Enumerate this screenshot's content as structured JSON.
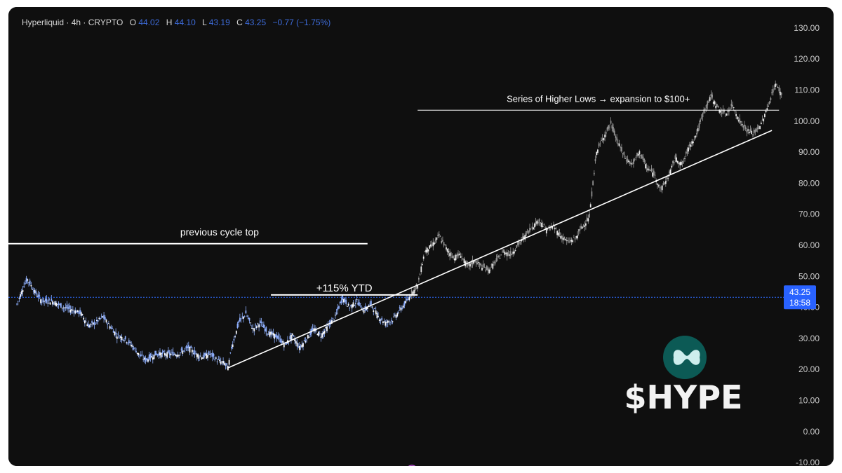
{
  "header": {
    "symbol": "Hyperliquid",
    "interval": "4h",
    "exchange": "CRYPTO",
    "open_label": "O",
    "open": "44.02",
    "high_label": "H",
    "high": "44.10",
    "low_label": "L",
    "low": "43.19",
    "close_label": "C",
    "close": "43.25",
    "change": "−0.77 (−1.75%)"
  },
  "price_tag": {
    "price": "43.25",
    "countdown": "18:58"
  },
  "logo": {
    "ticker": "$HYPE"
  },
  "colors": {
    "background": "#0f0f0f",
    "history_candles": "#8fb0ff",
    "projection_candles": "#9a9a9a",
    "annotation_lines": "#ffffff",
    "price_line": "#2f6bff",
    "price_tag": "#2962ff",
    "logo_teal": "#0c5a55",
    "change_text": "#3d6bd9"
  },
  "chart_data": {
    "type": "candlestick",
    "ylim": [
      -10,
      130
    ],
    "y_ticks": [
      "130.00",
      "120.00",
      "110.00",
      "100.00",
      "90.00",
      "80.00",
      "70.00",
      "60.00",
      "50.00",
      "40.00",
      "30.00",
      "20.00",
      "10.00",
      "0.00",
      "-10.00"
    ],
    "grid": false,
    "current_price": 43.25,
    "series": [
      {
        "role": "history",
        "path": [
          [
            0,
            41
          ],
          [
            2,
            47
          ],
          [
            3,
            49
          ],
          [
            5,
            45
          ],
          [
            7,
            42
          ],
          [
            10,
            42
          ],
          [
            13,
            40
          ],
          [
            16,
            39
          ],
          [
            18,
            38
          ],
          [
            20,
            34
          ],
          [
            22,
            35
          ],
          [
            24,
            37
          ],
          [
            26,
            34
          ],
          [
            28,
            31
          ],
          [
            30,
            30
          ],
          [
            32,
            28
          ],
          [
            34,
            25
          ],
          [
            36,
            23
          ],
          [
            39,
            25
          ],
          [
            42,
            25
          ],
          [
            45,
            25
          ],
          [
            48,
            27
          ],
          [
            50,
            25
          ],
          [
            52,
            24
          ],
          [
            54,
            25
          ],
          [
            56,
            23
          ],
          [
            58,
            22
          ],
          [
            59,
            20.5
          ],
          [
            60,
            27
          ],
          [
            62,
            35
          ],
          [
            64,
            38
          ],
          [
            66,
            33
          ],
          [
            68,
            35
          ],
          [
            70,
            32
          ],
          [
            72,
            31
          ],
          [
            74,
            29
          ],
          [
            75,
            28
          ],
          [
            77,
            31
          ],
          [
            79,
            27
          ],
          [
            81,
            30
          ],
          [
            83,
            33
          ],
          [
            85,
            31
          ],
          [
            87,
            34
          ],
          [
            89,
            37
          ],
          [
            91,
            43
          ],
          [
            93,
            40
          ],
          [
            95,
            42
          ],
          [
            97,
            39
          ],
          [
            99,
            41
          ],
          [
            101,
            37
          ],
          [
            103,
            35
          ],
          [
            105,
            36
          ],
          [
            107,
            39
          ],
          [
            109,
            42
          ],
          [
            110,
            44
          ]
        ]
      },
      {
        "role": "projection",
        "path": [
          [
            110,
            44
          ],
          [
            112,
            47
          ],
          [
            114,
            58
          ],
          [
            116,
            60
          ],
          [
            118,
            63
          ],
          [
            120,
            59
          ],
          [
            122,
            56
          ],
          [
            124,
            57
          ],
          [
            126,
            53
          ],
          [
            128,
            55
          ],
          [
            130,
            53
          ],
          [
            132,
            52
          ],
          [
            134,
            55
          ],
          [
            136,
            58
          ],
          [
            138,
            57
          ],
          [
            140,
            60
          ],
          [
            142,
            63
          ],
          [
            144,
            66
          ],
          [
            146,
            68
          ],
          [
            148,
            65
          ],
          [
            150,
            66
          ],
          [
            152,
            63
          ],
          [
            154,
            61
          ],
          [
            156,
            62
          ],
          [
            158,
            66
          ],
          [
            160,
            69
          ],
          [
            161,
            80
          ],
          [
            162,
            90
          ],
          [
            164,
            95
          ],
          [
            166,
            99
          ],
          [
            168,
            93
          ],
          [
            170,
            88
          ],
          [
            172,
            86
          ],
          [
            174,
            90
          ],
          [
            176,
            85
          ],
          [
            178,
            83
          ],
          [
            180,
            78
          ],
          [
            182,
            82
          ],
          [
            184,
            88
          ],
          [
            186,
            86
          ],
          [
            188,
            92
          ],
          [
            190,
            96
          ],
          [
            192,
            103
          ],
          [
            194,
            108
          ],
          [
            196,
            104
          ],
          [
            198,
            102
          ],
          [
            200,
            105
          ],
          [
            202,
            100
          ],
          [
            204,
            97
          ],
          [
            206,
            96
          ],
          [
            208,
            99
          ],
          [
            210,
            105
          ],
          [
            212,
            112
          ],
          [
            214,
            108
          ]
        ]
      }
    ],
    "annotations": [
      {
        "text": "previous cycle top",
        "y": 60.5,
        "x_range": [
          -12,
          98
        ]
      },
      {
        "text": "+115% YTD",
        "y": 44,
        "x_range": [
          71,
          112
        ]
      },
      {
        "text": "Series of Higher Lows → expansion to $100+",
        "y": 103.5,
        "x_range": [
          112,
          213
        ]
      }
    ],
    "trendline": {
      "from": [
        59,
        20.5
      ],
      "to": [
        211,
        97
      ]
    }
  }
}
